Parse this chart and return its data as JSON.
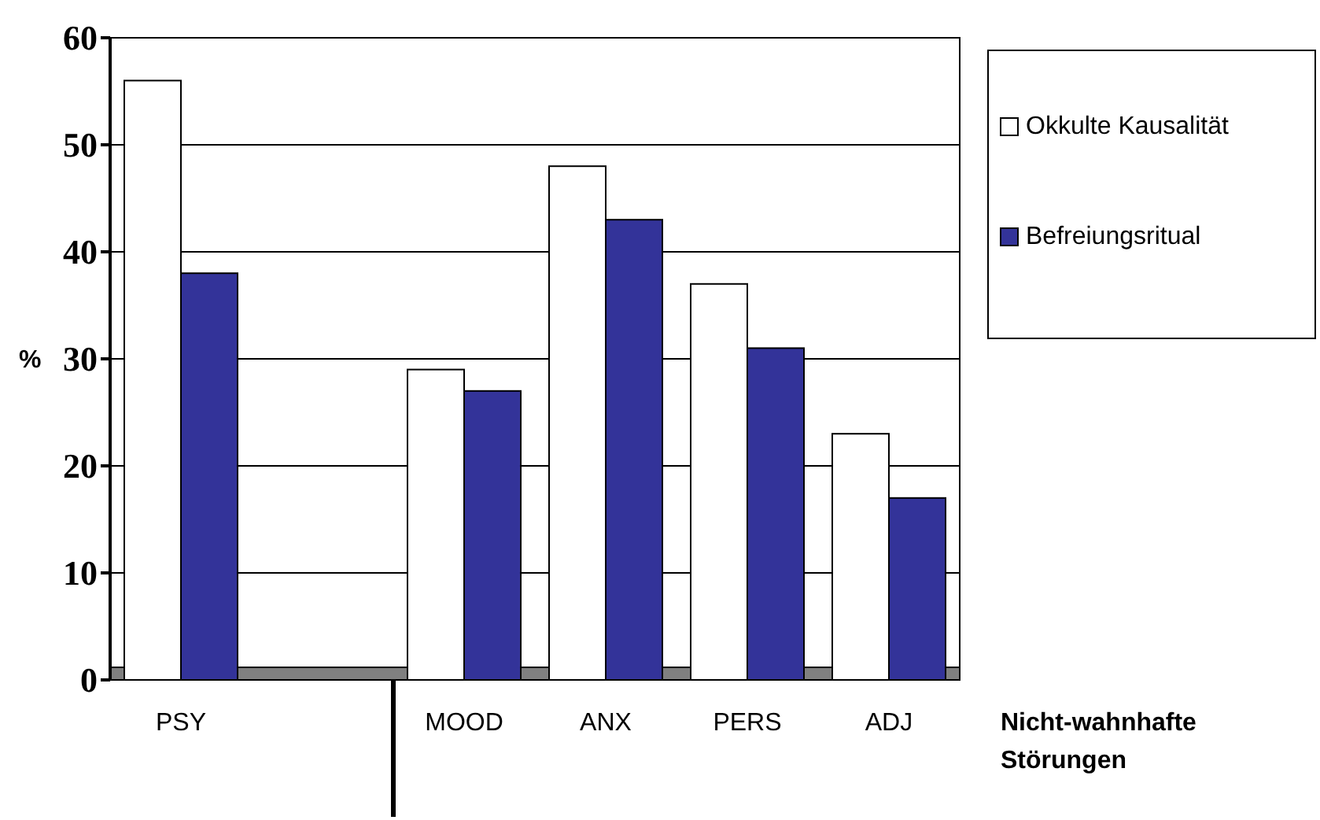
{
  "chart_data": {
    "type": "bar",
    "categories": [
      "PSY",
      null,
      "MOOD",
      "ANX",
      "PERS",
      "ADJ"
    ],
    "series": [
      {
        "name": "Okkulte Kausalität",
        "color": "#ffffff",
        "values": [
          56,
          null,
          29,
          48,
          37,
          23
        ]
      },
      {
        "name": "Befreiungsritual",
        "color": "#333399",
        "values": [
          38,
          null,
          27,
          43,
          31,
          17
        ]
      }
    ],
    "ylim": [
      0,
      60
    ],
    "yticks": [
      0,
      10,
      20,
      30,
      40,
      50,
      60
    ],
    "ylabel": "%",
    "xlabel": "Nicht-wahnhafte Störungen",
    "grid": "y",
    "legend": "right"
  }
}
